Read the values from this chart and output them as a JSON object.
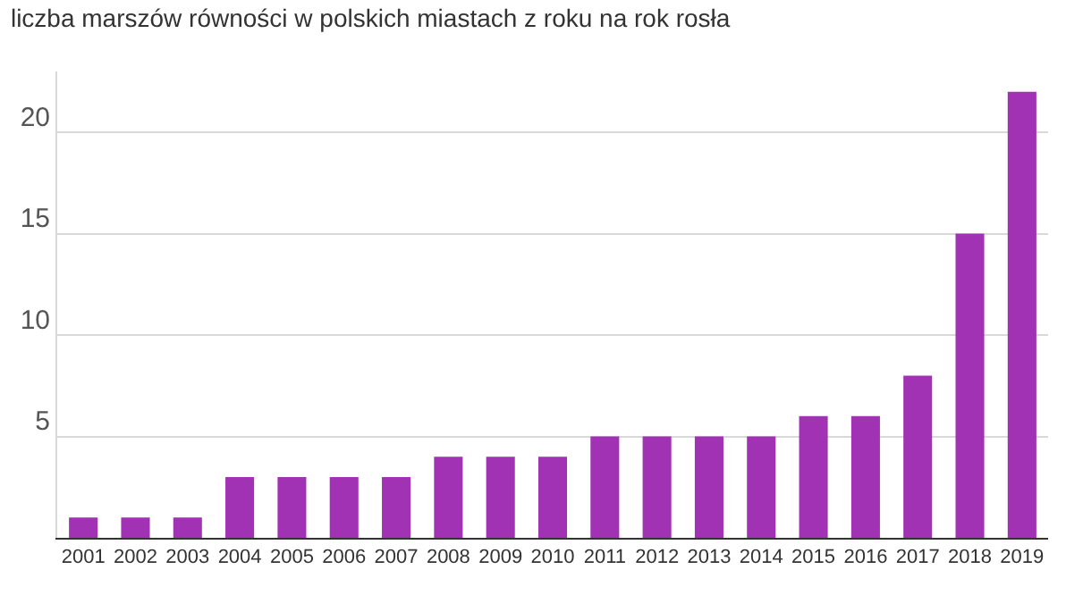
{
  "chart_data": {
    "type": "bar",
    "title": "liczba marszów równości w polskich miastach z roku na rok rosła",
    "categories": [
      "2001",
      "2002",
      "2003",
      "2004",
      "2005",
      "2006",
      "2007",
      "2008",
      "2009",
      "2010",
      "2011",
      "2012",
      "2013",
      "2014",
      "2015",
      "2016",
      "2017",
      "2018",
      "2019"
    ],
    "values": [
      1,
      1,
      1,
      3,
      3,
      3,
      3,
      4,
      4,
      4,
      5,
      5,
      5,
      5,
      6,
      6,
      8,
      15,
      22
    ],
    "color": "#a232b4",
    "ylim": [
      0,
      23
    ],
    "yticks": [
      {
        "value": 0,
        "label": null
      },
      5,
      10,
      15,
      20
    ],
    "grid": "y",
    "legend": false
  }
}
